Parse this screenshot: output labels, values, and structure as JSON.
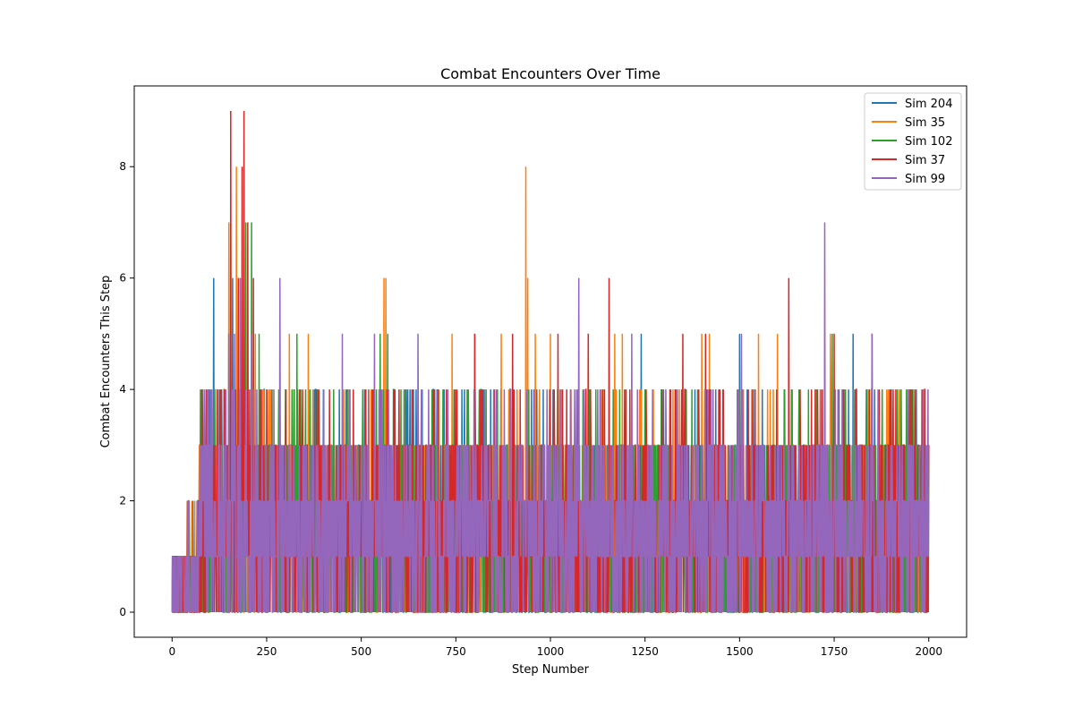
{
  "chart_data": {
    "type": "line",
    "title": "Combat Encounters Over Time",
    "xlabel": "Step Number",
    "ylabel": "Combat Encounters This Step",
    "xlim": [
      -100,
      2100
    ],
    "ylim": [
      -0.45,
      9.45
    ],
    "xticks": [
      0,
      250,
      500,
      750,
      1000,
      1250,
      1500,
      1750,
      2000
    ],
    "yticks": [
      0,
      2,
      4,
      6,
      8
    ],
    "grid": false,
    "legend_position": "top-right",
    "series": [
      {
        "name": "Sim 204",
        "color": "#1f77b4",
        "peaks": [
          [
            0,
            0
          ],
          [
            40,
            1
          ],
          [
            80,
            4
          ],
          [
            95,
            3
          ],
          [
            110,
            6
          ],
          [
            125,
            4
          ],
          [
            160,
            6
          ],
          [
            200,
            3
          ],
          [
            300,
            4
          ],
          [
            400,
            4
          ],
          [
            500,
            3
          ],
          [
            690,
            4
          ],
          [
            1000,
            4
          ],
          [
            1240,
            5
          ],
          [
            1250,
            4
          ],
          [
            1500,
            5
          ],
          [
            1520,
            4
          ],
          [
            1750,
            4
          ],
          [
            1800,
            5
          ],
          [
            1850,
            4
          ],
          [
            2000,
            3
          ]
        ]
      },
      {
        "name": "Sim 35",
        "color": "#ff7f0e",
        "peaks": [
          [
            0,
            0
          ],
          [
            40,
            2
          ],
          [
            60,
            2
          ],
          [
            80,
            2
          ],
          [
            150,
            7
          ],
          [
            170,
            8
          ],
          [
            185,
            6
          ],
          [
            220,
            5
          ],
          [
            240,
            4
          ],
          [
            260,
            4
          ],
          [
            310,
            5
          ],
          [
            360,
            5
          ],
          [
            520,
            4
          ],
          [
            560,
            6
          ],
          [
            565,
            6
          ],
          [
            740,
            5
          ],
          [
            800,
            5
          ],
          [
            870,
            5
          ],
          [
            935,
            8
          ],
          [
            940,
            6
          ],
          [
            960,
            5
          ],
          [
            1000,
            5
          ],
          [
            1100,
            5
          ],
          [
            1170,
            5
          ],
          [
            1190,
            5
          ],
          [
            1400,
            5
          ],
          [
            1420,
            5
          ],
          [
            1550,
            5
          ],
          [
            1600,
            5
          ],
          [
            1700,
            4
          ],
          [
            1740,
            5
          ],
          [
            1850,
            5
          ],
          [
            1900,
            4
          ],
          [
            2000,
            3
          ]
        ]
      },
      {
        "name": "Sim 102",
        "color": "#2ca02c",
        "peaks": [
          [
            0,
            0
          ],
          [
            150,
            5
          ],
          [
            180,
            6
          ],
          [
            195,
            7
          ],
          [
            210,
            7
          ],
          [
            230,
            5
          ],
          [
            300,
            4
          ],
          [
            330,
            5
          ],
          [
            340,
            4
          ],
          [
            550,
            5
          ],
          [
            570,
            5
          ],
          [
            780,
            4
          ],
          [
            860,
            4
          ],
          [
            1000,
            3
          ],
          [
            1250,
            4
          ],
          [
            1500,
            4
          ],
          [
            1745,
            5
          ],
          [
            1850,
            4
          ],
          [
            1950,
            4
          ],
          [
            2000,
            3
          ]
        ]
      },
      {
        "name": "Sim 37",
        "color": "#d62728",
        "peaks": [
          [
            0,
            1
          ],
          [
            20,
            1
          ],
          [
            80,
            3
          ],
          [
            120,
            3
          ],
          [
            155,
            9
          ],
          [
            175,
            6
          ],
          [
            185,
            8
          ],
          [
            190,
            9
          ],
          [
            200,
            7
          ],
          [
            215,
            6
          ],
          [
            250,
            4
          ],
          [
            300,
            3
          ],
          [
            400,
            3
          ],
          [
            600,
            4
          ],
          [
            800,
            5
          ],
          [
            900,
            5
          ],
          [
            1020,
            5
          ],
          [
            1100,
            5
          ],
          [
            1155,
            6
          ],
          [
            1200,
            4
          ],
          [
            1350,
            5
          ],
          [
            1410,
            5
          ],
          [
            1630,
            6
          ],
          [
            1700,
            4
          ],
          [
            1750,
            5
          ],
          [
            1850,
            5
          ],
          [
            1900,
            4
          ],
          [
            1990,
            4
          ],
          [
            2000,
            3
          ]
        ]
      },
      {
        "name": "Sim 99",
        "color": "#9467bd",
        "peaks": [
          [
            0,
            0
          ],
          [
            50,
            1
          ],
          [
            100,
            3
          ],
          [
            150,
            5
          ],
          [
            165,
            5
          ],
          [
            180,
            6
          ],
          [
            210,
            5
          ],
          [
            285,
            6
          ],
          [
            300,
            3
          ],
          [
            450,
            5
          ],
          [
            535,
            5
          ],
          [
            650,
            5
          ],
          [
            700,
            4
          ],
          [
            1075,
            6
          ],
          [
            1100,
            3
          ],
          [
            1215,
            5
          ],
          [
            1400,
            3
          ],
          [
            1505,
            5
          ],
          [
            1600,
            3
          ],
          [
            1725,
            7
          ],
          [
            1760,
            4
          ],
          [
            1850,
            5
          ],
          [
            2000,
            2
          ]
        ]
      }
    ]
  }
}
